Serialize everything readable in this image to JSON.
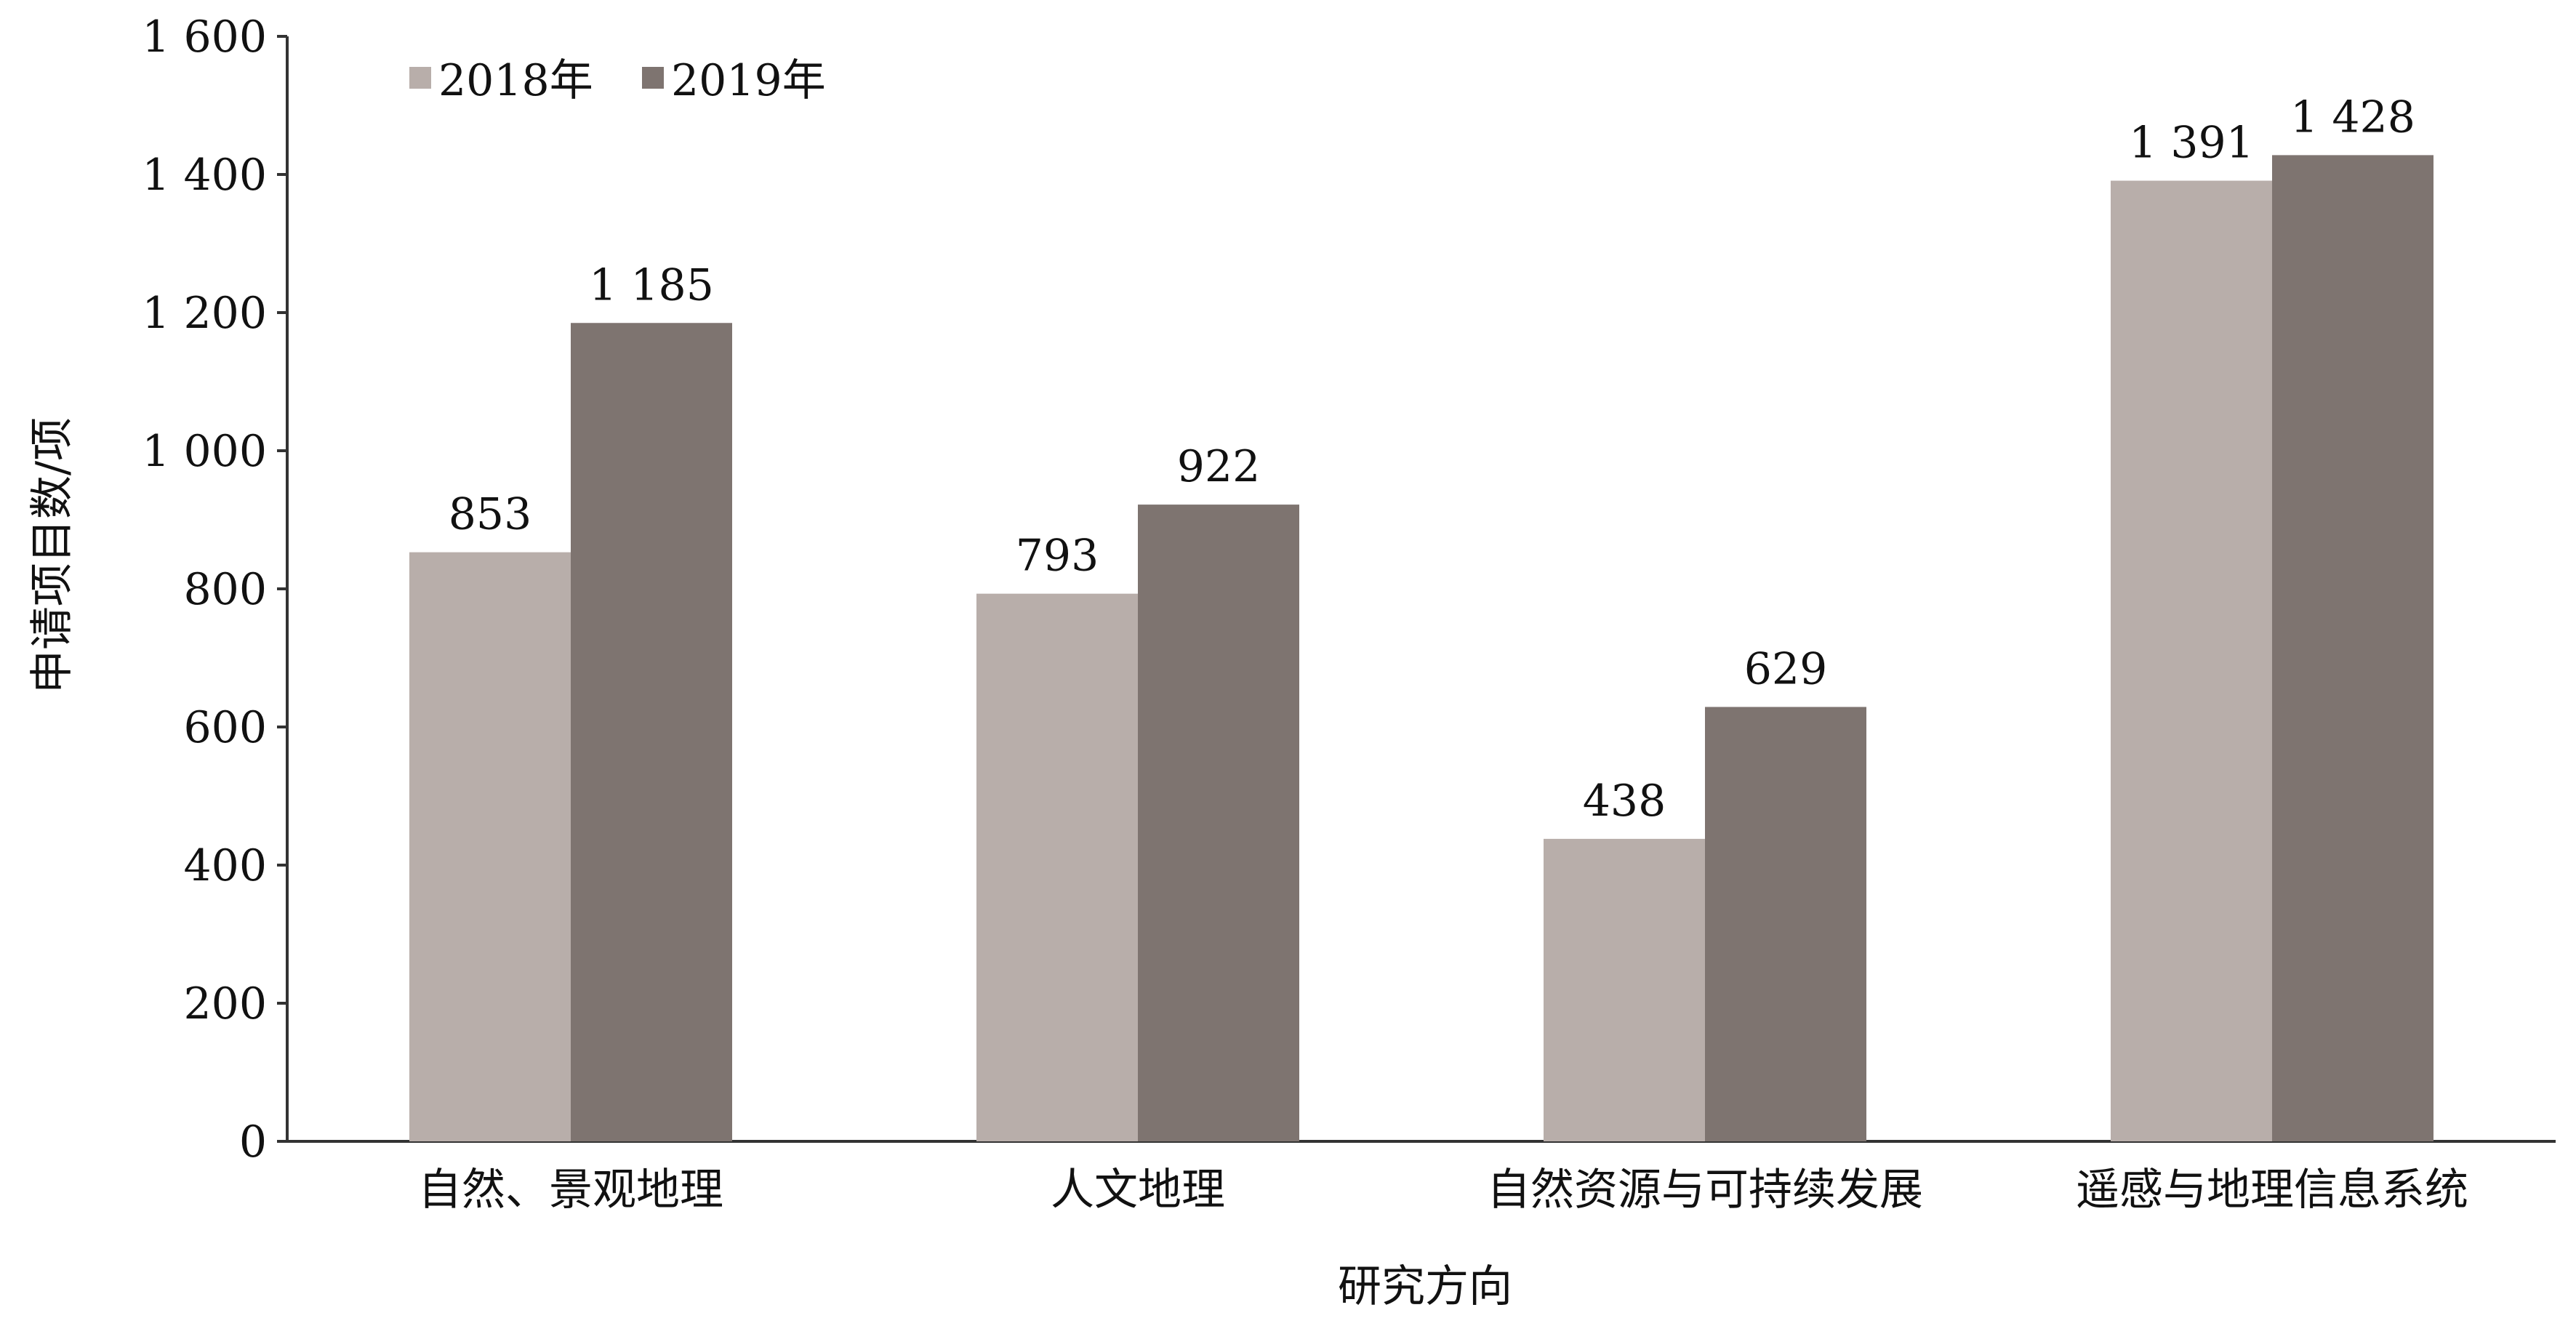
{
  "chart_data": {
    "type": "bar",
    "categories": [
      "自然、景观地理",
      "人文地理",
      "自然资源与可持续发展",
      "遥感与地理信息系统"
    ],
    "series": [
      {
        "name": "2018年",
        "values": [
          853,
          793,
          438,
          1391
        ],
        "value_labels": [
          "853",
          "793",
          "438",
          "1 391"
        ],
        "color": "#b8aeaa"
      },
      {
        "name": "2019年",
        "values": [
          1185,
          922,
          629,
          1428
        ],
        "value_labels": [
          "1 185",
          "922",
          "629",
          "1 428"
        ],
        "color": "#7e7470"
      }
    ],
    "ylim": [
      0,
      1600
    ],
    "yticks": [
      0,
      200,
      400,
      600,
      800,
      1000,
      1200,
      1400,
      1600
    ],
    "ytick_labels": [
      "0",
      "200",
      "400",
      "600",
      "800",
      "1 000",
      "1 200",
      "1 400",
      "1 600"
    ],
    "xlabel": "研究方向",
    "ylabel": "申请项目数/项",
    "legend_position": "top-left",
    "grid": false
  }
}
